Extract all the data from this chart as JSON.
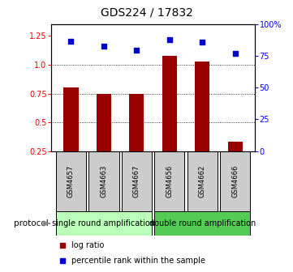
{
  "title": "GDS224 / 17832",
  "samples": [
    "GSM4657",
    "GSM4663",
    "GSM4667",
    "GSM4656",
    "GSM4662",
    "GSM4666"
  ],
  "log_ratio": [
    0.8,
    0.75,
    0.75,
    1.08,
    1.03,
    0.33
  ],
  "percentile_rank": [
    87,
    83,
    80,
    88,
    86,
    77
  ],
  "bar_color": "#990000",
  "marker_color": "#0000cc",
  "yticks_left": [
    0.25,
    0.5,
    0.75,
    1.0,
    1.25
  ],
  "yticks_right": [
    0,
    25,
    50,
    75,
    100
  ],
  "ylim_left": [
    0.25,
    1.35
  ],
  "ylim_right": [
    0,
    100
  ],
  "group1_label": "single round amplification",
  "group2_label": "double round amplification",
  "group1_indices": [
    0,
    1,
    2
  ],
  "group2_indices": [
    3,
    4,
    5
  ],
  "protocol_label": "protocol",
  "legend_bar_label": "log ratio",
  "legend_marker_label": "percentile rank within the sample",
  "group1_color": "#bbffbb",
  "group2_color": "#55cc55",
  "sample_box_color": "#cccccc",
  "title_fontsize": 10,
  "tick_fontsize": 7,
  "sample_fontsize": 6,
  "protocol_fontsize": 7.5,
  "legend_fontsize": 7
}
